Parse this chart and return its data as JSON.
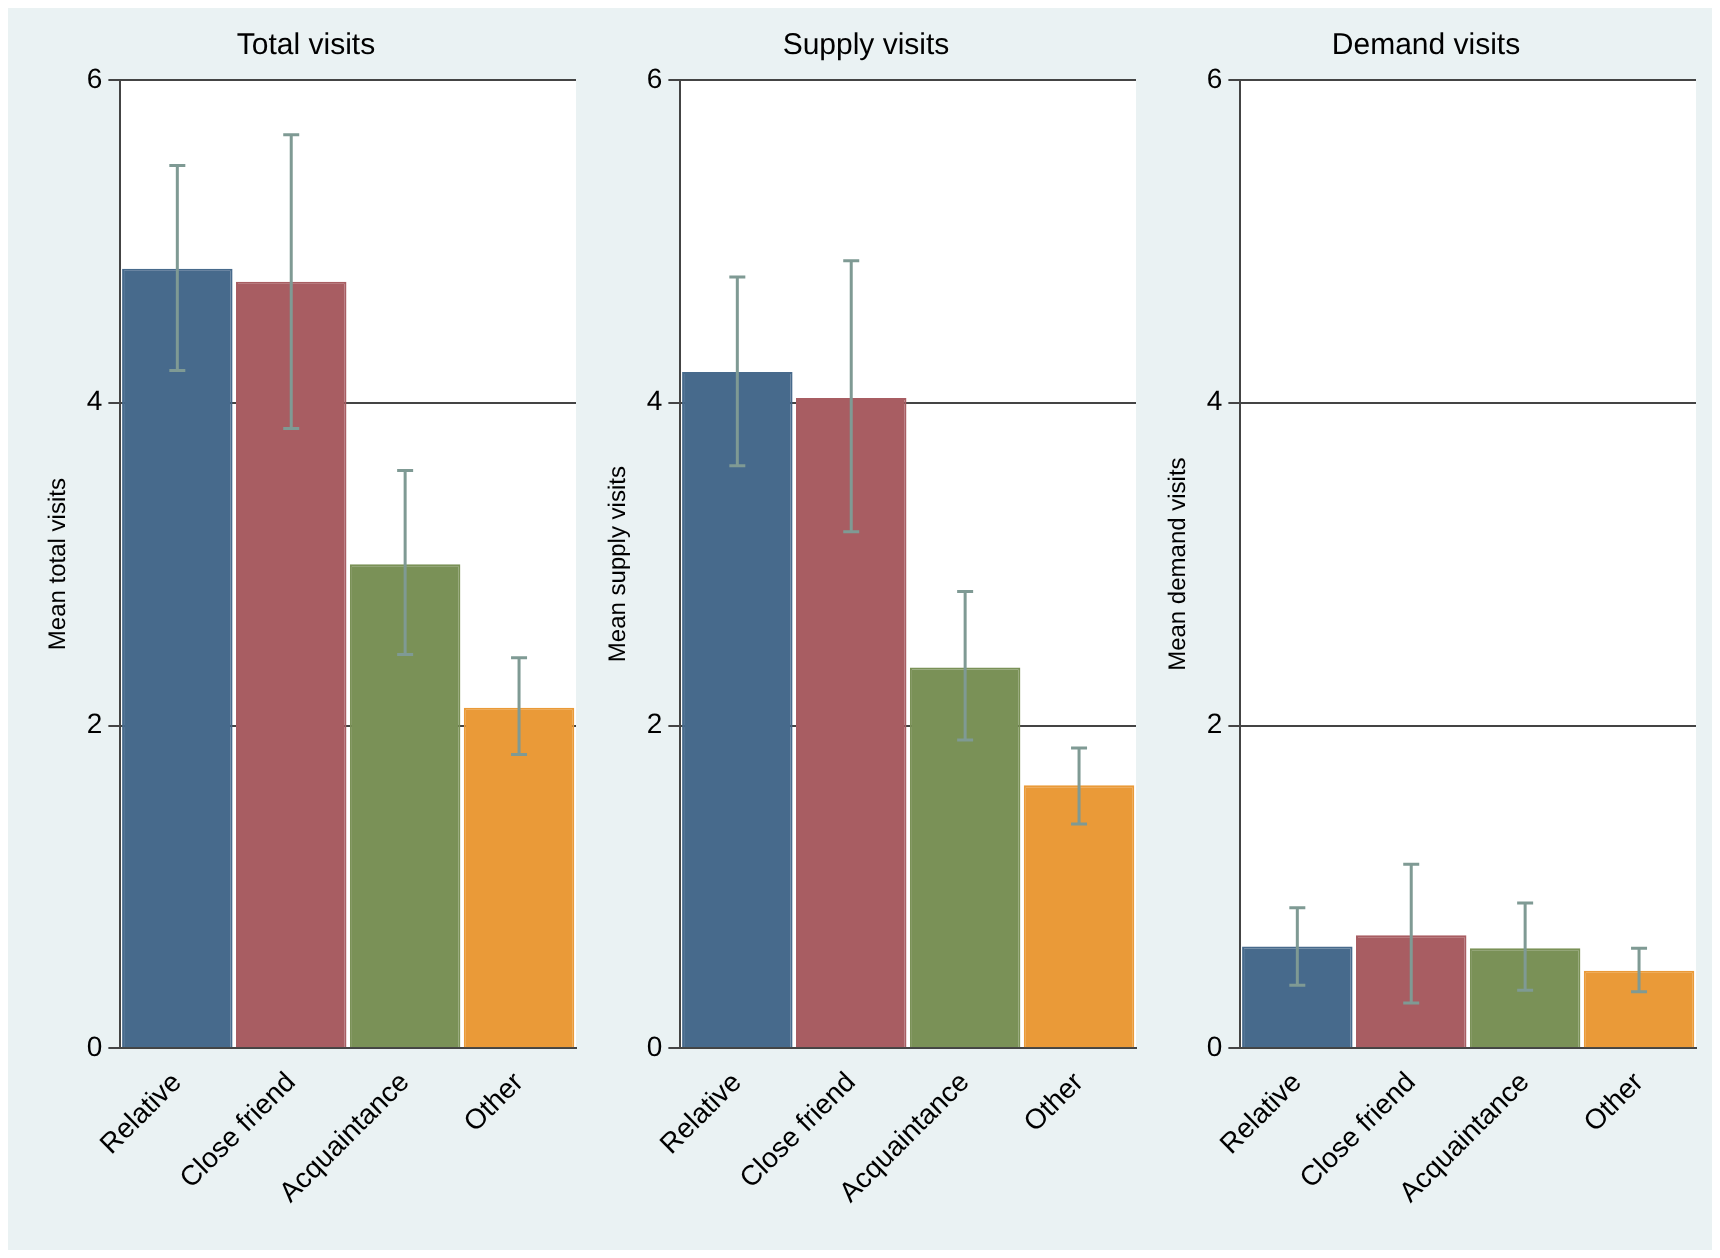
{
  "chart_data": [
    {
      "type": "bar",
      "title": "Total visits",
      "ylabel": "Mean total visits",
      "categories": [
        "Relative",
        "Close friend",
        "Acquaintance",
        "Other"
      ],
      "values": [
        4.83,
        4.75,
        3.0,
        2.11
      ],
      "colors": [
        "#476a8c",
        "#a85d62",
        "#7a9157",
        "#ea9a38"
      ],
      "errors": [
        [
          4.2,
          5.47
        ],
        [
          3.84,
          5.66
        ],
        [
          2.44,
          3.58
        ],
        [
          1.82,
          2.42
        ]
      ],
      "ylim": [
        0,
        6
      ],
      "yticks": [
        0,
        2,
        4,
        6
      ],
      "grid": "y",
      "legend": false
    },
    {
      "type": "bar",
      "title": "Supply visits",
      "ylabel": "Mean supply visits",
      "categories": [
        "Relative",
        "Close friend",
        "Acquaintance",
        "Other"
      ],
      "values": [
        4.19,
        4.03,
        2.36,
        1.63
      ],
      "colors": [
        "#476a8c",
        "#a85d62",
        "#7a9157",
        "#ea9a38"
      ],
      "errors": [
        [
          3.61,
          4.78
        ],
        [
          3.2,
          4.88
        ],
        [
          1.91,
          2.83
        ],
        [
          1.39,
          1.86
        ]
      ],
      "ylim": [
        0,
        6
      ],
      "yticks": [
        0,
        2,
        4,
        6
      ],
      "grid": "y",
      "legend": false
    },
    {
      "type": "bar",
      "title": "Demand visits",
      "ylabel": "Mean demand visits",
      "categories": [
        "Relative",
        "Close friend",
        "Acquaintance",
        "Other"
      ],
      "values": [
        0.63,
        0.7,
        0.62,
        0.48
      ],
      "colors": [
        "#476a8c",
        "#a85d62",
        "#7a9157",
        "#ea9a38"
      ],
      "errors": [
        [
          0.39,
          0.87
        ],
        [
          0.28,
          1.14
        ],
        [
          0.36,
          0.9
        ],
        [
          0.35,
          0.62
        ]
      ],
      "ylim": [
        0,
        6
      ],
      "yticks": [
        0,
        2,
        4,
        6
      ],
      "grid": "y",
      "legend": false
    }
  ]
}
